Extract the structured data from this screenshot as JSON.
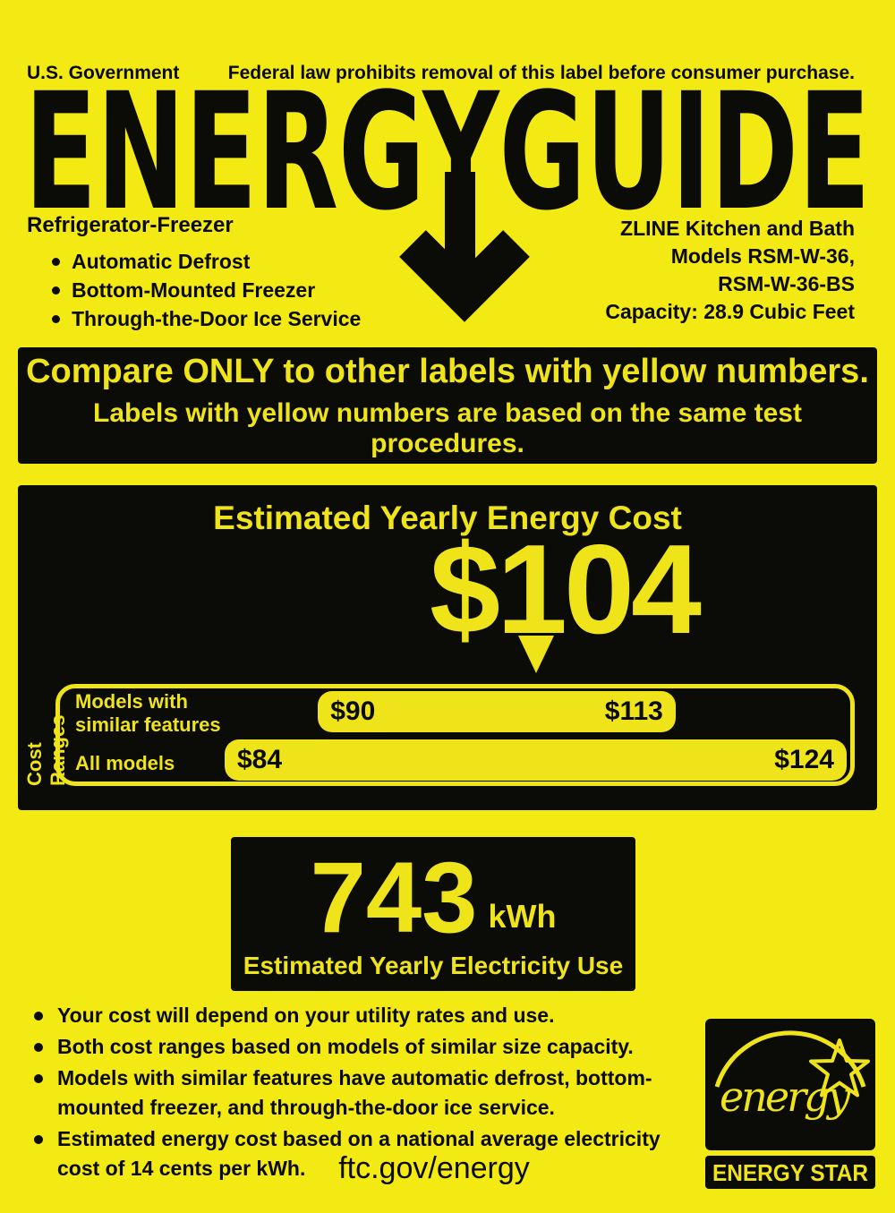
{
  "colors": {
    "background": "#F3E913",
    "accent_yellow": "#EFE31A",
    "ink": "#0B0B08"
  },
  "header": {
    "agency": "U.S. Government",
    "legal": "Federal law prohibits removal of this label before consumer purchase.",
    "logo": "ENERGYGUIDE"
  },
  "product": {
    "category": "Refrigerator-Freezer",
    "features": [
      "Automatic Defrost",
      "Bottom-Mounted Freezer",
      "Through-the-Door Ice Service"
    ],
    "brand": "ZLINE Kitchen and Bath",
    "models_line1": "Models RSM-W-36,",
    "models_line2": "RSM-W-36-BS",
    "capacity": "Capacity: 28.9 Cubic Feet"
  },
  "compare_box": {
    "line1": "Compare ONLY to other labels with yellow numbers.",
    "line2": "Labels with yellow numbers are based on the same test procedures."
  },
  "cost_box": {
    "title": "Estimated Yearly Energy Cost",
    "cost_display": "$104",
    "side_label": "Cost Ranges",
    "rows": [
      {
        "label_line1": "Models with",
        "label_line2": "similar features",
        "low_display": "$90",
        "high_display": "$113"
      },
      {
        "label_line1": "All models",
        "label_line2": "",
        "low_display": "$84",
        "high_display": "$124"
      }
    ]
  },
  "chart_data": {
    "type": "bar",
    "title": "Estimated Yearly Energy Cost",
    "value": 104,
    "unit": "USD per year",
    "axis_min": 84,
    "axis_max": 124,
    "series": [
      {
        "name": "Models with similar features",
        "low": 90,
        "high": 113
      },
      {
        "name": "All models",
        "low": 84,
        "high": 124
      }
    ]
  },
  "usage_box": {
    "value": "743",
    "unit": "kWh",
    "caption": "Estimated Yearly Electricity Use"
  },
  "footnotes": [
    "Your cost will depend on your utility rates and use.",
    "Both cost ranges based on models of similar size capacity.",
    "Models with similar features have automatic defrost, bottom-mounted freezer, and through-the-door ice service.",
    "Estimated energy cost based on a national average electricity cost of 14 cents per kWh."
  ],
  "footer": {
    "url": "ftc.gov/energy"
  },
  "energy_star": {
    "script_text": "energy",
    "band_text": "ENERGY STAR"
  }
}
